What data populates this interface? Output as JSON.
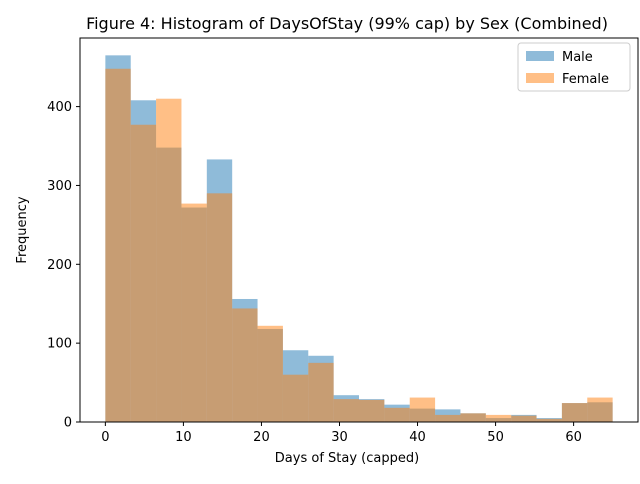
{
  "chart_data": {
    "type": "histogram",
    "title": "Figure 4: Histogram of DaysOfStay (99% cap) by Sex (Combined)",
    "xlabel": "Days of Stay (capped)",
    "ylabel": "Frequency",
    "xlim": [
      -3.25,
      68.25
    ],
    "ylim": [
      0,
      487
    ],
    "xticks": [
      0,
      10,
      20,
      30,
      40,
      50,
      60
    ],
    "yticks": [
      0,
      100,
      200,
      300,
      400
    ],
    "bin_start": 0,
    "bin_width": 3.25,
    "legend_position": "top-right",
    "series": [
      {
        "name": "Male",
        "color": "#1f77b4",
        "opacity": 0.5,
        "values": [
          465,
          408,
          348,
          272,
          333,
          156,
          118,
          91,
          84,
          34,
          29,
          22,
          17,
          16,
          11,
          5,
          9,
          5,
          24,
          25
        ]
      },
      {
        "name": "Female",
        "color": "#ff7f0e",
        "opacity": 0.5,
        "values": [
          448,
          377,
          410,
          277,
          290,
          144,
          122,
          60,
          75,
          29,
          28,
          18,
          31,
          9,
          11,
          9,
          8,
          4,
          24,
          31
        ]
      }
    ]
  }
}
